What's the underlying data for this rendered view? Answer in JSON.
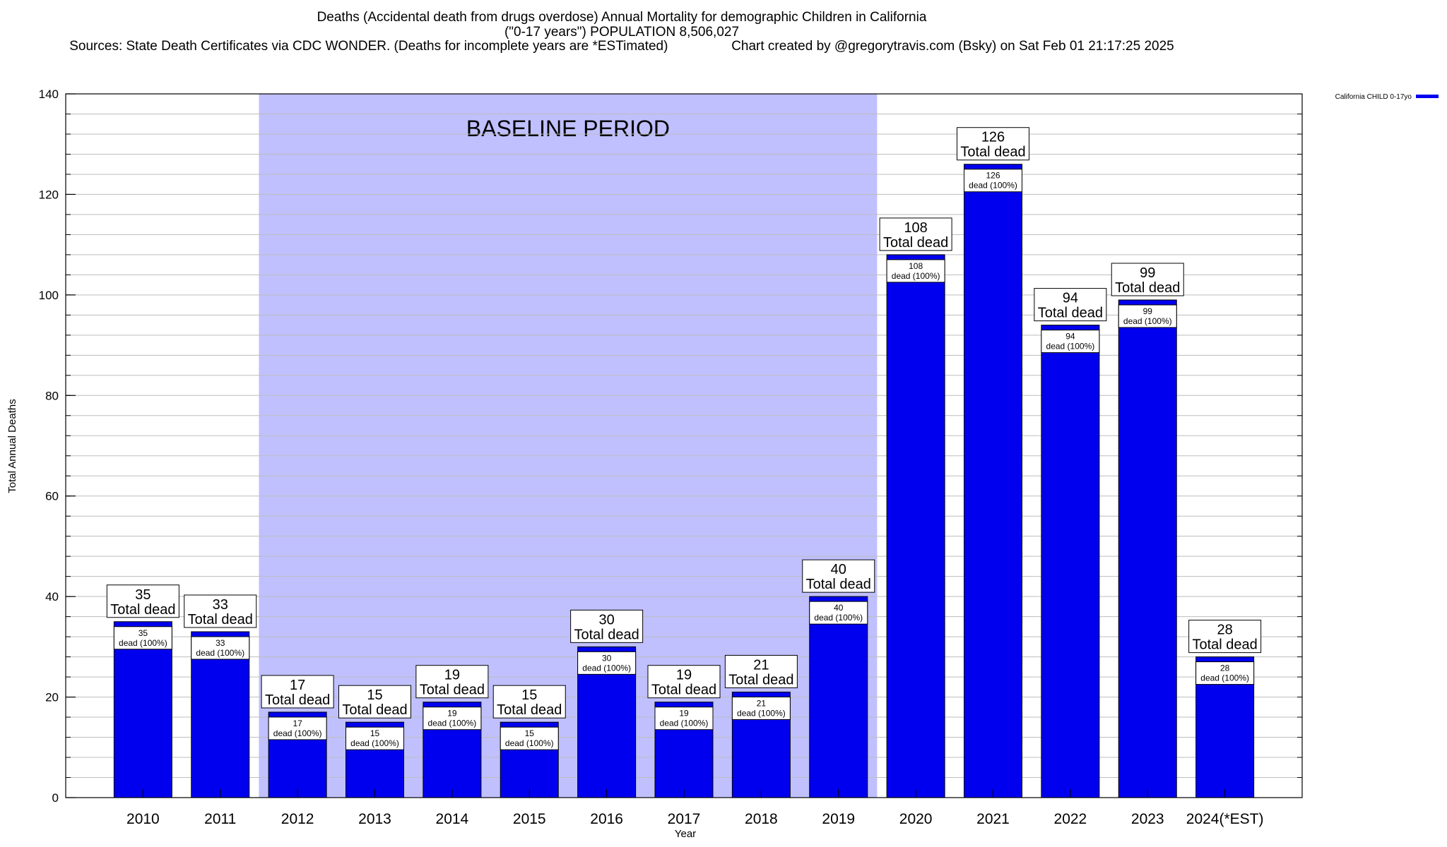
{
  "chart_data": {
    "type": "bar",
    "title_lines": [
      "Deaths (Accidental death from drugs overdose) Annual Mortality for demographic Children in California",
      "(\"0-17 years\") POPULATION 8,506,027",
      "Sources: State Death Certificates via CDC WONDER. (Deaths for incomplete years are *ESTimated)                 Chart created by @gregorytravis.com (Bsky) on Sat Feb 01 21:17:25 2025"
    ],
    "xlabel": "Year",
    "ylabel": "Total Annual Deaths",
    "ylim": [
      0,
      140
    ],
    "yticks": [
      0,
      20,
      40,
      60,
      80,
      100,
      120,
      140
    ],
    "minor_step": 4,
    "categories": [
      "2010",
      "2011",
      "2012",
      "2013",
      "2014",
      "2015",
      "2016",
      "2017",
      "2018",
      "2019",
      "2020",
      "2021",
      "2022",
      "2023",
      "2024(*EST)"
    ],
    "series": [
      {
        "name": "California CHILD 0-17yo",
        "color": "#0000ee",
        "values": [
          35,
          33,
          17,
          15,
          19,
          15,
          30,
          19,
          21,
          40,
          108,
          126,
          94,
          99,
          28
        ]
      }
    ],
    "total_label": "Total dead",
    "inner_label": "dead (100%)",
    "baseline": {
      "label": "BASELINE PERIOD",
      "start": "2012",
      "end": "2019",
      "color": "#c0c0ff"
    },
    "legend_position": "top-right"
  }
}
